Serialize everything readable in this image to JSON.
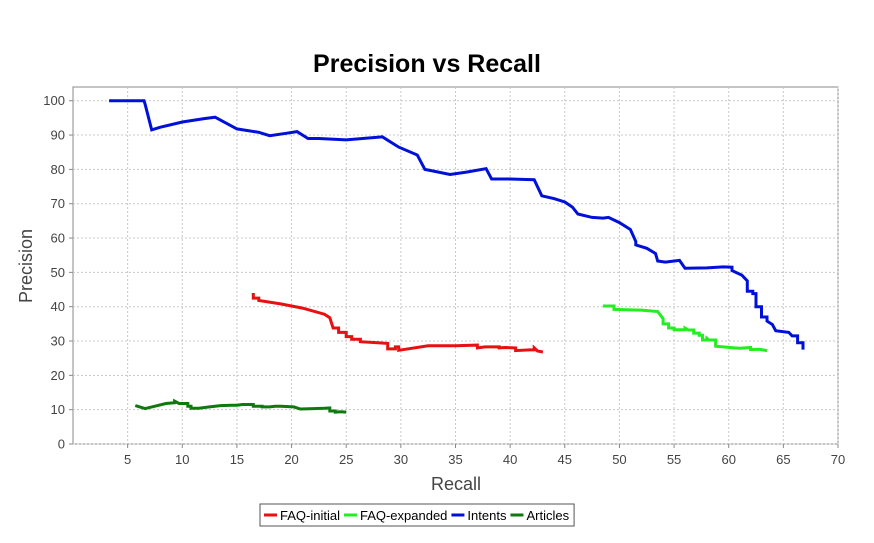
{
  "chart_data": {
    "type": "line",
    "title": "Precision vs Recall",
    "xlabel": "Recall",
    "ylabel": "Precision",
    "xlim": [
      0,
      70
    ],
    "ylim": [
      0,
      104
    ],
    "xticks": [
      5,
      10,
      15,
      20,
      25,
      30,
      35,
      40,
      45,
      50,
      55,
      60,
      65,
      70
    ],
    "yticks": [
      0,
      10,
      20,
      30,
      40,
      50,
      60,
      70,
      80,
      90,
      100
    ],
    "grid": true,
    "legend": "bottom",
    "series": [
      {
        "name": "FAQ-initial",
        "color": "#e81010",
        "points": [
          [
            16.5,
            44.0
          ],
          [
            16.5,
            42.5
          ],
          [
            17.0,
            42.5
          ],
          [
            17.0,
            41.8
          ],
          [
            19.0,
            40.8
          ],
          [
            21.0,
            39.6
          ],
          [
            23.0,
            37.8
          ],
          [
            23.5,
            36.8
          ],
          [
            23.8,
            33.8
          ],
          [
            24.3,
            33.8
          ],
          [
            24.3,
            32.5
          ],
          [
            25.0,
            32.5
          ],
          [
            25.0,
            31.3
          ],
          [
            25.5,
            31.3
          ],
          [
            25.5,
            30.5
          ],
          [
            26.3,
            30.5
          ],
          [
            26.3,
            29.8
          ],
          [
            28.8,
            29.3
          ],
          [
            28.8,
            27.7
          ],
          [
            29.5,
            27.7
          ],
          [
            29.5,
            28.3
          ],
          [
            29.8,
            28.3
          ],
          [
            29.8,
            27.3
          ],
          [
            32.5,
            28.6
          ],
          [
            35.0,
            28.6
          ],
          [
            37.0,
            28.8
          ],
          [
            37.0,
            28.0
          ],
          [
            37.7,
            28.3
          ],
          [
            39.0,
            28.3
          ],
          [
            39.0,
            28.0
          ],
          [
            39.5,
            28.1
          ],
          [
            40.5,
            28.0
          ],
          [
            40.5,
            27.2
          ],
          [
            41.8,
            27.4
          ],
          [
            42.2,
            27.4
          ],
          [
            42.2,
            28.0
          ],
          [
            42.5,
            27.1
          ],
          [
            43.0,
            26.8
          ]
        ]
      },
      {
        "name": "FAQ-expanded",
        "color": "#22ee22",
        "points": [
          [
            48.5,
            40.2
          ],
          [
            49.5,
            40.2
          ],
          [
            49.5,
            39.2
          ],
          [
            52.0,
            39.0
          ],
          [
            53.5,
            38.6
          ],
          [
            54.0,
            36.5
          ],
          [
            54.0,
            35.0
          ],
          [
            54.5,
            35.0
          ],
          [
            54.5,
            33.8
          ],
          [
            55.0,
            33.8
          ],
          [
            55.0,
            33.3
          ],
          [
            56.0,
            33.3
          ],
          [
            56.0,
            33.8
          ],
          [
            56.3,
            33.2
          ],
          [
            56.8,
            33.2
          ],
          [
            56.8,
            32.3
          ],
          [
            57.3,
            32.3
          ],
          [
            57.3,
            31.7
          ],
          [
            57.6,
            31.7
          ],
          [
            57.6,
            30.3
          ],
          [
            58.0,
            30.3
          ],
          [
            58.0,
            30.8
          ],
          [
            58.2,
            30.3
          ],
          [
            58.8,
            30.3
          ],
          [
            58.8,
            28.5
          ],
          [
            59.5,
            28.3
          ],
          [
            60.5,
            28.0
          ],
          [
            61.0,
            27.9
          ],
          [
            62.0,
            28.1
          ],
          [
            62.0,
            27.5
          ],
          [
            62.8,
            27.6
          ],
          [
            63.5,
            27.2
          ]
        ]
      },
      {
        "name": "Intents",
        "color": "#0010d8",
        "points": [
          [
            3.3,
            100
          ],
          [
            6.5,
            100
          ],
          [
            6.6,
            99.0
          ],
          [
            7.2,
            91.5
          ],
          [
            8.0,
            92.3
          ],
          [
            10.0,
            93.8
          ],
          [
            12.0,
            94.8
          ],
          [
            13.0,
            95.2
          ],
          [
            15.0,
            91.8
          ],
          [
            17.0,
            90.8
          ],
          [
            18.0,
            89.8
          ],
          [
            19.5,
            90.5
          ],
          [
            20.5,
            91.0
          ],
          [
            21.5,
            89.0
          ],
          [
            22.5,
            89.0
          ],
          [
            25.0,
            88.6
          ],
          [
            28.3,
            89.5
          ],
          [
            29.8,
            86.5
          ],
          [
            31.5,
            84.2
          ],
          [
            32.2,
            80.0
          ],
          [
            33.0,
            79.5
          ],
          [
            34.5,
            78.5
          ],
          [
            36.0,
            79.2
          ],
          [
            37.8,
            80.2
          ],
          [
            38.3,
            77.2
          ],
          [
            40.0,
            77.2
          ],
          [
            42.2,
            77.0
          ],
          [
            42.9,
            72.3
          ],
          [
            44.0,
            71.5
          ],
          [
            45.0,
            70.5
          ],
          [
            45.7,
            69.0
          ],
          [
            46.2,
            67.0
          ],
          [
            47.5,
            66.0
          ],
          [
            48.5,
            65.8
          ],
          [
            49.0,
            66.0
          ],
          [
            50.0,
            64.5
          ],
          [
            51.0,
            62.5
          ],
          [
            51.5,
            59.0
          ],
          [
            51.5,
            58.0
          ],
          [
            52.5,
            57.0
          ],
          [
            53.3,
            55.5
          ],
          [
            53.5,
            53.3
          ],
          [
            54.2,
            53.0
          ],
          [
            55.5,
            53.5
          ],
          [
            56.0,
            51.2
          ],
          [
            58.0,
            51.3
          ],
          [
            59.5,
            51.6
          ],
          [
            60.3,
            51.5
          ],
          [
            60.3,
            50.5
          ],
          [
            61.2,
            49.2
          ],
          [
            61.7,
            47.5
          ],
          [
            61.7,
            44.5
          ],
          [
            62.2,
            44.5
          ],
          [
            62.2,
            43.8
          ],
          [
            62.5,
            43.8
          ],
          [
            62.5,
            40.0
          ],
          [
            63.0,
            40.0
          ],
          [
            63.0,
            37.0
          ],
          [
            63.5,
            37.0
          ],
          [
            63.5,
            35.8
          ],
          [
            64.0,
            34.8
          ],
          [
            64.3,
            33.0
          ],
          [
            65.5,
            32.5
          ],
          [
            65.8,
            31.5
          ],
          [
            66.3,
            31.5
          ],
          [
            66.3,
            29.5
          ],
          [
            66.8,
            29.5
          ],
          [
            66.8,
            27.5
          ]
        ]
      },
      {
        "name": "Articles",
        "color": "#0e7a0e",
        "points": [
          [
            5.7,
            11.2
          ],
          [
            6.6,
            10.3
          ],
          [
            7.5,
            11.0
          ],
          [
            8.5,
            11.8
          ],
          [
            9.3,
            12.0
          ],
          [
            9.3,
            12.5
          ],
          [
            9.7,
            11.8
          ],
          [
            10.5,
            11.8
          ],
          [
            10.5,
            11.0
          ],
          [
            10.8,
            11.0
          ],
          [
            10.8,
            10.4
          ],
          [
            11.5,
            10.4
          ],
          [
            12.5,
            10.8
          ],
          [
            13.5,
            11.2
          ],
          [
            14.5,
            11.3
          ],
          [
            15.0,
            11.3
          ],
          [
            15.5,
            11.5
          ],
          [
            16.5,
            11.5
          ],
          [
            16.5,
            11.0
          ],
          [
            17.3,
            11.0
          ],
          [
            17.3,
            10.8
          ],
          [
            18.0,
            10.8
          ],
          [
            18.5,
            11.0
          ],
          [
            19.0,
            11.0
          ],
          [
            20.2,
            10.8
          ],
          [
            20.8,
            10.2
          ],
          [
            22.0,
            10.3
          ],
          [
            23.0,
            10.4
          ],
          [
            23.5,
            10.5
          ],
          [
            23.5,
            9.6
          ],
          [
            24.0,
            9.6
          ],
          [
            24.0,
            9.3
          ],
          [
            24.5,
            9.4
          ],
          [
            25.0,
            9.3
          ]
        ]
      }
    ]
  }
}
